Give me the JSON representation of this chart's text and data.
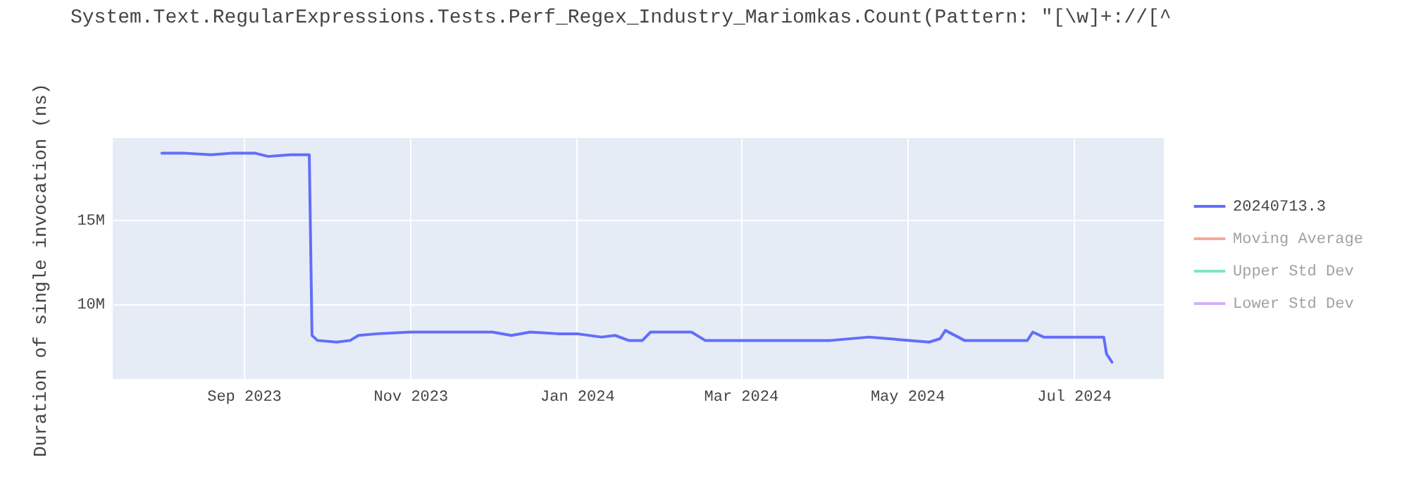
{
  "chart_data": {
    "type": "line",
    "title": "System.Text.RegularExpressions.Tests.Perf_Regex_Industry_Mariomkas.Count(Pattern: \"[\\w]+://[^",
    "ylabel": "Duration of single invocation (ns)",
    "x": [
      "2023-08-02",
      "2023-08-10",
      "2023-08-20",
      "2023-08-28",
      "2023-09-05",
      "2023-09-10",
      "2023-09-18",
      "2023-09-25",
      "2023-09-26",
      "2023-09-28",
      "2023-10-05",
      "2023-10-10",
      "2023-10-13",
      "2023-10-20",
      "2023-11-01",
      "2023-11-15",
      "2023-12-01",
      "2023-12-08",
      "2023-12-15",
      "2023-12-25",
      "2024-01-01",
      "2024-01-10",
      "2024-01-15",
      "2024-01-20",
      "2024-01-25",
      "2024-01-28",
      "2024-02-12",
      "2024-02-17",
      "2024-03-03",
      "2024-04-03",
      "2024-04-17",
      "2024-05-09",
      "2024-05-13",
      "2024-05-15",
      "2024-05-22",
      "2024-06-14",
      "2024-06-16",
      "2024-06-20",
      "2024-07-12",
      "2024-07-13",
      "2024-07-15"
    ],
    "series": [
      {
        "name": "20240713.3",
        "color": "#636efa",
        "values": [
          19000000,
          19000000,
          18900000,
          19000000,
          19000000,
          18800000,
          18900000,
          18900000,
          8100000,
          7800000,
          7700000,
          7800000,
          8100000,
          8200000,
          8300000,
          8300000,
          8300000,
          8100000,
          8300000,
          8200000,
          8200000,
          8000000,
          8100000,
          7800000,
          7800000,
          8300000,
          8300000,
          7800000,
          7800000,
          7800000,
          8000000,
          7700000,
          7900000,
          8400000,
          7800000,
          7800000,
          8300000,
          8000000,
          8000000,
          7000000,
          6500000
        ]
      },
      {
        "name": "Moving Average",
        "color": "#ef553b",
        "values": [
          null,
          null,
          null,
          null,
          null,
          null,
          null,
          null,
          null,
          null,
          null,
          null,
          null,
          null,
          null,
          null,
          null,
          null,
          null,
          null,
          null,
          null,
          null,
          null,
          null,
          null,
          null,
          null,
          null,
          null,
          null,
          null,
          null,
          null,
          null,
          null,
          null,
          null,
          null,
          null,
          null
        ]
      },
      {
        "name": "Upper Std Dev",
        "color": "#00cc96",
        "values": [
          null,
          null,
          null,
          null,
          null,
          null,
          null,
          null,
          null,
          null,
          null,
          null,
          null,
          null,
          null,
          null,
          null,
          null,
          null,
          null,
          null,
          null,
          null,
          null,
          null,
          null,
          null,
          null,
          null,
          null,
          null,
          null,
          null,
          null,
          null,
          null,
          null,
          null,
          null,
          null,
          null
        ]
      },
      {
        "name": "Lower Std Dev",
        "color": "#ab63fa",
        "values": [
          null,
          null,
          null,
          null,
          null,
          null,
          null,
          null,
          null,
          null,
          null,
          null,
          null,
          null,
          null,
          null,
          null,
          null,
          null,
          null,
          null,
          null,
          null,
          null,
          null,
          null,
          null,
          null,
          null,
          null,
          null,
          null,
          null,
          null,
          null,
          null,
          null,
          null,
          null,
          null,
          null
        ]
      }
    ],
    "xlim": [
      "2023-07-15",
      "2024-08-03"
    ],
    "xticks": [
      {
        "value": "2023-09-01",
        "label": "Sep 2023"
      },
      {
        "value": "2023-11-01",
        "label": "Nov 2023"
      },
      {
        "value": "2024-01-01",
        "label": "Jan 2024"
      },
      {
        "value": "2024-03-01",
        "label": "Mar 2024"
      },
      {
        "value": "2024-05-01",
        "label": "May 2024"
      },
      {
        "value": "2024-07-01",
        "label": "Jul 2024"
      }
    ],
    "ylim": [
      5500000,
      19900000
    ],
    "yticks": [
      {
        "value": 10000000,
        "label": "10M"
      },
      {
        "value": 15000000,
        "label": "15M"
      }
    ],
    "grid": true,
    "legend": "right",
    "marker": "none",
    "line_style": "solid"
  }
}
